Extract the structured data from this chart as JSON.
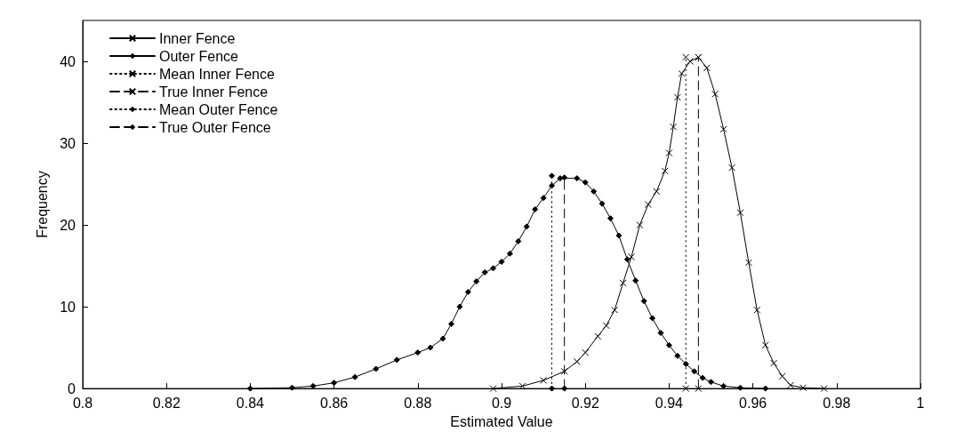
{
  "chart_data": {
    "type": "line",
    "xlabel": "Estimated Value",
    "ylabel": "Frequency",
    "xlim": [
      0.8,
      1
    ],
    "xticks": [
      0.8,
      0.82,
      0.84,
      0.86,
      0.88,
      0.9,
      0.92,
      0.94,
      0.96,
      0.98,
      1
    ],
    "ylim": [
      0,
      45
    ],
    "yticks": [
      0,
      10,
      20,
      30,
      40
    ],
    "grid": false,
    "legend": "top left",
    "series": [
      {
        "name": "Inner Fence",
        "color": "#000000",
        "marker": "cross",
        "line_style": "solid",
        "x": [
          0.898,
          0.905,
          0.91,
          0.915,
          0.918,
          0.92,
          0.923,
          0.925,
          0.927,
          0.929,
          0.931,
          0.933,
          0.935,
          0.937,
          0.939,
          0.94,
          0.941,
          0.942,
          0.943,
          0.945,
          0.947,
          0.949,
          0.951,
          0.953,
          0.955,
          0.957,
          0.959,
          0.961,
          0.963,
          0.965,
          0.967,
          0.969,
          0.972,
          0.977
        ],
        "values": [
          0,
          0.3,
          1,
          2.1,
          3.3,
          4.4,
          6.4,
          7.7,
          9.6,
          12.9,
          16.1,
          20,
          22.5,
          24.1,
          26.6,
          28.8,
          32,
          35.6,
          38.5,
          40,
          40.5,
          39.2,
          36,
          31.7,
          27,
          21.5,
          15.4,
          9.6,
          5.3,
          3.1,
          1.5,
          0.4,
          0.1,
          0
        ]
      },
      {
        "name": "Outer Fence",
        "color": "#000000",
        "marker": "diamond",
        "line_style": "solid",
        "x": [
          0.84,
          0.85,
          0.855,
          0.86,
          0.865,
          0.87,
          0.875,
          0.88,
          0.883,
          0.886,
          0.888,
          0.89,
          0.892,
          0.894,
          0.896,
          0.898,
          0.9,
          0.902,
          0.904,
          0.906,
          0.908,
          0.91,
          0.912,
          0.914,
          0.918,
          0.92,
          0.922,
          0.924,
          0.926,
          0.928,
          0.93,
          0.932,
          0.934,
          0.936,
          0.938,
          0.94,
          0.942,
          0.944,
          0.946,
          0.948,
          0.95,
          0.953,
          0.957,
          0.963
        ],
        "values": [
          0,
          0.1,
          0.3,
          0.7,
          1.4,
          2.4,
          3.5,
          4.4,
          5,
          6.1,
          7.9,
          10,
          11.8,
          13.1,
          14.2,
          14.7,
          15.5,
          16.5,
          18,
          19.8,
          21.9,
          23.3,
          24.8,
          25.7,
          25.7,
          25.2,
          24.1,
          22.6,
          20.8,
          18.7,
          15.8,
          13.2,
          10.7,
          8.6,
          6.8,
          5.3,
          4,
          3,
          2.1,
          1.3,
          0.8,
          0.3,
          0.1,
          0
        ]
      },
      {
        "name": "Mean Inner Fence",
        "color": "#000000",
        "marker": "cross",
        "line_style": "dotted",
        "x": [
          0.944,
          0.944
        ],
        "values": [
          0,
          40.5
        ]
      },
      {
        "name": "True Inner Fence",
        "color": "#000000",
        "marker": "cross",
        "line_style": "dashed",
        "x": [
          0.947,
          0.947
        ],
        "values": [
          0,
          40.5
        ]
      },
      {
        "name": "Mean Outer Fence",
        "color": "#000000",
        "marker": "diamond",
        "line_style": "dotted",
        "x": [
          0.912,
          0.912
        ],
        "values": [
          0,
          26
        ]
      },
      {
        "name": "True Outer Fence",
        "color": "#000000",
        "marker": "diamond",
        "line_style": "dashed",
        "x": [
          0.915,
          0.915
        ],
        "values": [
          0,
          25.8
        ]
      }
    ]
  }
}
